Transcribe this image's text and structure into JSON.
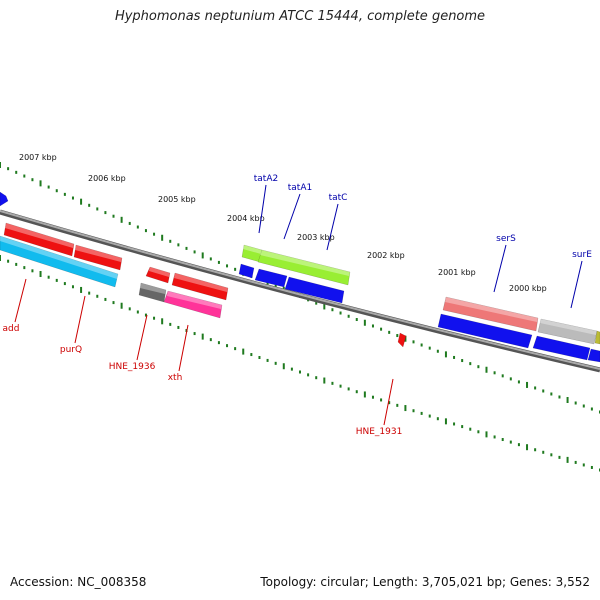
{
  "title": "Hyphomonas neptunium ATCC 15444, complete genome",
  "footer": {
    "accession": "Accession: NC_008358",
    "summary": "Topology: circular; Length: 3,705,021 bp; Genes: 3,552"
  },
  "scale_labels": [
    "2007 kbp",
    "2006 kbp",
    "2005 kbp",
    "2004 kbp",
    "2003 kbp",
    "2002 kbp",
    "2001 kbp",
    "2000 kbp"
  ],
  "gene_labels_top": [
    "tatA2",
    "tatA1",
    "tatC",
    "serS",
    "surE"
  ],
  "gene_labels_bottom": [
    "add",
    "purQ",
    "HNE_1936",
    "xth",
    "HNE_1931"
  ],
  "colors": {
    "background": "#ffffff",
    "backbone": "#808080",
    "tick": "#1f7a1f",
    "top_label": "#0000aa",
    "bottom_label": "#cc0000",
    "red": "#ee1111",
    "blue": "#1111ee",
    "cyan": "#11bbee",
    "lime": "#99ee33",
    "pink": "#ff3399",
    "salmon": "#ee7777",
    "light_gray": "#bbbbbb",
    "dark_gray": "#666666",
    "olive": "#bbbb33"
  }
}
